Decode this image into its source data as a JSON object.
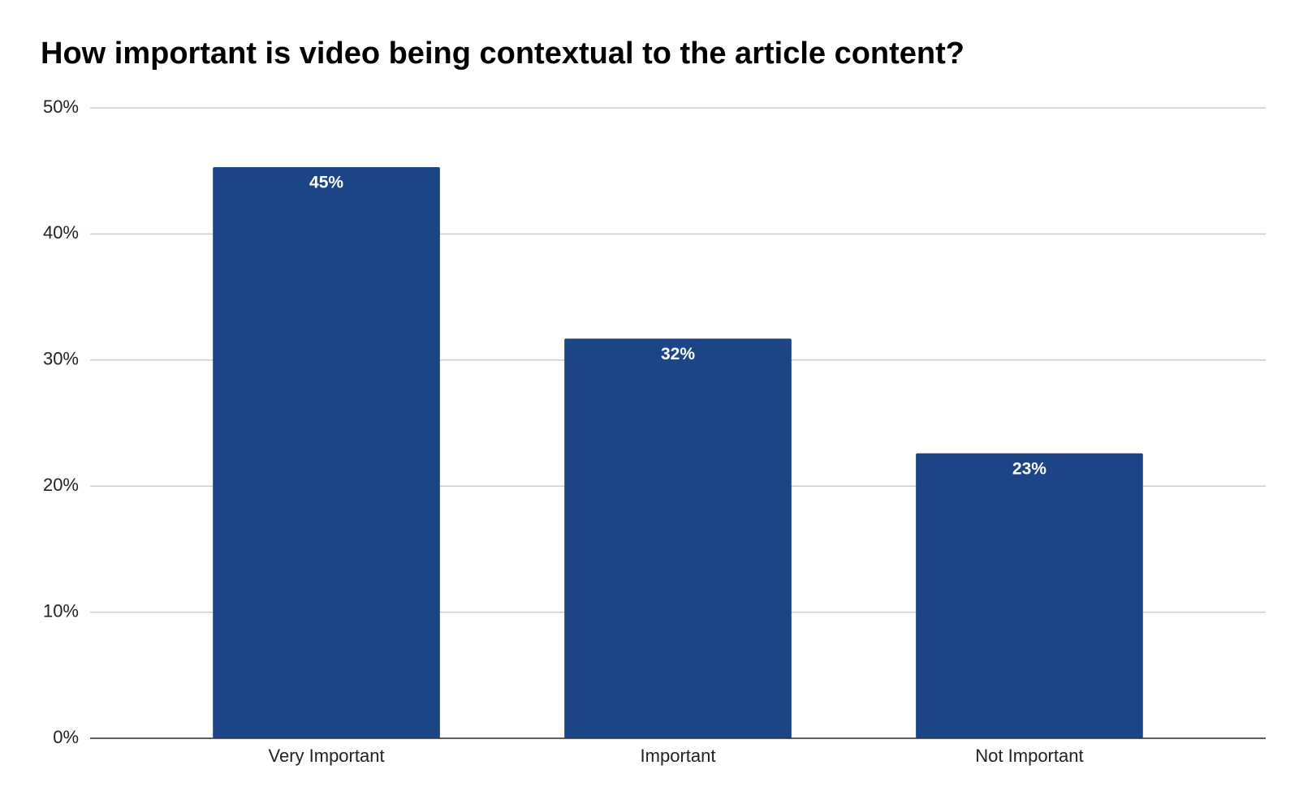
{
  "chart_data": {
    "type": "bar",
    "title": "How important is video being contextual to the article content?",
    "categories": [
      "Very Important",
      "Important",
      "Not Important"
    ],
    "values": [
      45.3,
      31.7,
      22.6
    ],
    "value_labels": [
      "45%",
      "32%",
      "23%"
    ],
    "color": "#1c4587",
    "ylim": [
      0,
      50
    ],
    "yticks": [
      {
        "value": 0,
        "label": "0%"
      },
      {
        "value": 10,
        "label": "10%"
      },
      {
        "value": 20,
        "label": "20%"
      },
      {
        "value": 30,
        "label": "30%"
      },
      {
        "value": 40,
        "label": "40%"
      },
      {
        "value": 50,
        "label": "50%"
      }
    ],
    "grid": true
  }
}
